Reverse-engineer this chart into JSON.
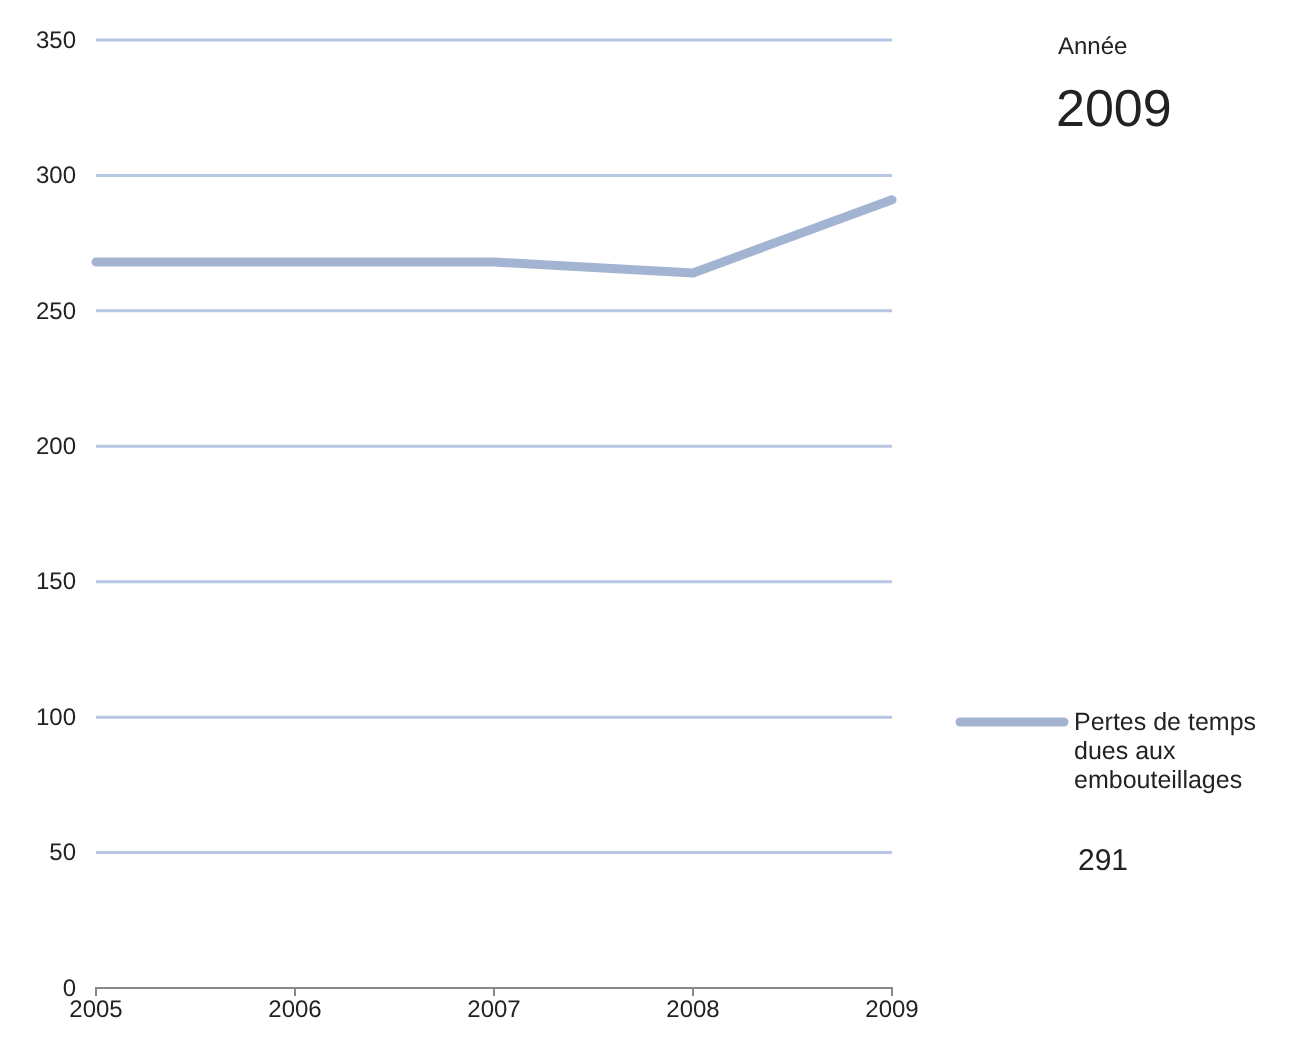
{
  "chart_data": {
    "type": "line",
    "x": [
      2005,
      2006,
      2007,
      2008,
      2009
    ],
    "series": [
      {
        "name": "Pertes de temps dues aux embouteillages",
        "color": "#a3b4d2",
        "values": [
          268,
          268,
          268,
          264,
          291
        ]
      }
    ],
    "xlim": [
      2005,
      2009
    ],
    "xticks": [
      2005,
      2006,
      2007,
      2008,
      2009
    ],
    "ylim": [
      0,
      350
    ],
    "yticks": [
      0,
      50,
      100,
      150,
      200,
      250,
      300,
      350
    ],
    "grid": "y",
    "legend": "right",
    "marker": "none",
    "line_style": "solid",
    "annotations": [
      "Année",
      "2009",
      "291"
    ]
  }
}
